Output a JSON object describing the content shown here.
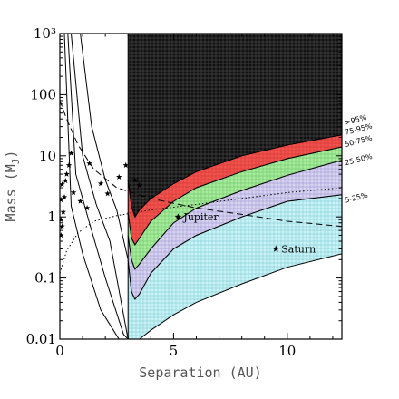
{
  "chart_data": {
    "type": "area",
    "xlabel": "Separation (AU)",
    "ylabel": "Mass (M",
    "ylabel_sub": "J",
    "ylabel_close": ")",
    "xlim": [
      0,
      12.4
    ],
    "ylim": [
      0.01,
      1000
    ],
    "yscale": "log",
    "x_ticks": [
      {
        "value": 0,
        "label": "0"
      },
      {
        "value": 5,
        "label": "5"
      },
      {
        "value": 10,
        "label": "10"
      }
    ],
    "y_ticks": [
      {
        "value": 0.01,
        "label": "0.01"
      },
      {
        "value": 0.1,
        "label": "0.1"
      },
      {
        "value": 1,
        "label": "1"
      },
      {
        "value": 10,
        "label": "10"
      },
      {
        "value": 100,
        "label": "100"
      },
      {
        "value": 1000,
        "label": "10³"
      }
    ],
    "bands": [
      {
        "label": "5-25%",
        "color": "#c9f3f6",
        "hatch": "#8fd3dc",
        "label_y": 1.7,
        "x": [
          3.0,
          3.15,
          3.3,
          3.5,
          4.0,
          5.0,
          6.0,
          8.0,
          10.0,
          12.4
        ],
        "lower": [
          0.01,
          0.01,
          0.01,
          0.01,
          0.014,
          0.025,
          0.04,
          0.08,
          0.15,
          0.25
        ],
        "upper": [
          0.2,
          0.06,
          0.045,
          0.055,
          0.12,
          0.3,
          0.5,
          1.0,
          1.8,
          2.3
        ]
      },
      {
        "label": "25-50%",
        "color": "#d8d4f0",
        "hatch": "#a9a2d8",
        "label_y": 7,
        "x": [
          3.0,
          3.15,
          3.3,
          3.5,
          4.0,
          5.0,
          6.0,
          8.0,
          10.0,
          12.4
        ],
        "lower": [
          0.2,
          0.06,
          0.045,
          0.055,
          0.12,
          0.3,
          0.5,
          1.0,
          1.8,
          2.3
        ],
        "upper": [
          0.5,
          0.2,
          0.14,
          0.17,
          0.3,
          0.8,
          1.4,
          2.7,
          4.8,
          8.5
        ]
      },
      {
        "label": "50-75%",
        "color": "#a6ec9c",
        "hatch": "#78cc70",
        "label_y": 14,
        "x": [
          3.0,
          3.15,
          3.3,
          3.5,
          4.0,
          5.0,
          6.0,
          8.0,
          10.0,
          12.4
        ],
        "lower": [
          0.5,
          0.2,
          0.14,
          0.17,
          0.3,
          0.8,
          1.4,
          2.7,
          4.8,
          8.5
        ],
        "upper": [
          1.2,
          0.45,
          0.35,
          0.45,
          0.85,
          1.8,
          3.0,
          5.5,
          9.0,
          14.0
        ]
      },
      {
        "label": "75-95%",
        "color": "#f0524e",
        "hatch": "#d83a36",
        "label_y": 22,
        "x": [
          3.0,
          3.15,
          3.3,
          3.5,
          4.0,
          5.0,
          6.0,
          8.0,
          10.0,
          12.4
        ],
        "lower": [
          1.2,
          0.45,
          0.35,
          0.45,
          0.85,
          1.8,
          3.0,
          5.5,
          9.0,
          14.0
        ],
        "upper": [
          4.0,
          1.5,
          1.0,
          1.3,
          2.0,
          3.5,
          5.5,
          10.0,
          15.0,
          22.0
        ]
      },
      {
        "label": ">95%",
        "color": "#111111",
        "hatch": "#444444",
        "label_y": 32,
        "x": [
          3.0,
          3.15,
          3.3,
          3.5,
          4.0,
          5.0,
          6.0,
          8.0,
          10.0,
          12.4
        ],
        "lower": [
          4.0,
          1.5,
          1.0,
          1.3,
          2.0,
          3.5,
          5.5,
          10.0,
          15.0,
          22.0
        ],
        "upper": [
          1000,
          1000,
          1000,
          1000,
          1000,
          1000,
          1000,
          1000,
          1000,
          1000
        ]
      }
    ],
    "contours": [
      {
        "side": "left",
        "style": "solid",
        "x": [
          0.9,
          1.4,
          2.0,
          2.5,
          3.0
        ],
        "y": [
          1000,
          30,
          4,
          1.3,
          0.2
        ]
      },
      {
        "side": "left",
        "style": "solid",
        "x": [
          0.5,
          1.0,
          1.6,
          2.2,
          3.0
        ],
        "y": [
          1000,
          10,
          1.6,
          0.4,
          0.01
        ]
      },
      {
        "side": "left",
        "style": "solid",
        "x": [
          0.35,
          0.7,
          1.3,
          2.0,
          2.8,
          3.0
        ],
        "y": [
          1000,
          5,
          0.8,
          0.1,
          0.012,
          0.01
        ]
      },
      {
        "side": "left",
        "style": "solid",
        "x": [
          0.2,
          0.5,
          1.0,
          1.8,
          2.6,
          2.9
        ],
        "y": [
          1000,
          1.5,
          0.25,
          0.03,
          0.01,
          0.01
        ]
      }
    ],
    "curves": [
      {
        "name": "dashed",
        "style": "dashed",
        "x": [
          0.0,
          0.3,
          0.8,
          1.5,
          2.5,
          4.0,
          6.0,
          8.0,
          10.0,
          12.4
        ],
        "y": [
          80,
          40,
          15,
          6,
          3.0,
          2.0,
          1.4,
          1.1,
          0.85,
          0.7
        ]
      },
      {
        "name": "dotted",
        "style": "dotted",
        "x": [
          0.0,
          0.3,
          0.8,
          1.5,
          2.5,
          4.0,
          6.0,
          8.0,
          10.0,
          12.4
        ],
        "y": [
          0.12,
          0.28,
          0.55,
          0.85,
          1.05,
          1.3,
          1.6,
          2.0,
          2.5,
          3.0
        ]
      }
    ],
    "planets": [
      {
        "label": "Jupiter",
        "x": 5.2,
        "y": 1.0
      },
      {
        "label": "Saturn",
        "x": 9.5,
        "y": 0.3
      }
    ],
    "stars": [
      {
        "x": 0.05,
        "y": 0.5
      },
      {
        "x": 0.1,
        "y": 0.7
      },
      {
        "x": 0.05,
        "y": 0.9
      },
      {
        "x": 0.15,
        "y": 1.2
      },
      {
        "x": 0.05,
        "y": 1.9
      },
      {
        "x": 0.2,
        "y": 2.1
      },
      {
        "x": 0.1,
        "y": 3.4
      },
      {
        "x": 0.25,
        "y": 3.9
      },
      {
        "x": 0.3,
        "y": 5.0
      },
      {
        "x": 0.4,
        "y": 7.0
      },
      {
        "x": 0.5,
        "y": 11.0
      },
      {
        "x": 0.6,
        "y": 2.5
      },
      {
        "x": 0.9,
        "y": 1.8
      },
      {
        "x": 1.2,
        "y": 1.4
      },
      {
        "x": 1.3,
        "y": 7.5
      },
      {
        "x": 1.8,
        "y": 3.5
      },
      {
        "x": 2.1,
        "y": 2.4
      },
      {
        "x": 2.6,
        "y": 4.5
      },
      {
        "x": 2.9,
        "y": 7.0
      },
      {
        "x": 3.3,
        "y": 4.0
      },
      {
        "x": 3.5,
        "y": 3.3
      }
    ]
  }
}
